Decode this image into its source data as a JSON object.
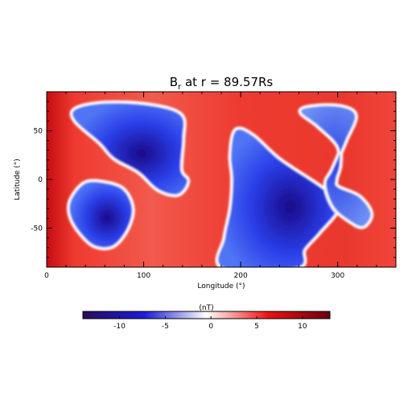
{
  "chart_data": {
    "type": "heatmap",
    "title": {
      "prefix": "B",
      "subscript": "r",
      "suffix": " at r = 89.57Rs"
    },
    "xlabel": "Longitude (°)",
    "ylabel": "Latitude (°)",
    "xlim": [
      0,
      360
    ],
    "ylim": [
      -90,
      90
    ],
    "xticks": [
      0,
      100,
      200,
      300
    ],
    "yticks": [
      -50,
      0,
      50
    ],
    "x_minor_step": 20,
    "y_minor_step": 10,
    "grid": false,
    "colormap": "blue-white-red diverging",
    "colorbar": {
      "label": "(nT)",
      "range": [
        -14,
        13
      ],
      "ticks": [
        -10,
        -5,
        0,
        5,
        10
      ],
      "colors": [
        "#2a0a5e",
        "#1c1cd9",
        "#ffffff",
        "#ee1111",
        "#6b0010"
      ]
    },
    "regions": [
      {
        "sign": "negative",
        "description": "northern blue lobe",
        "peak": -11.5,
        "outline": [
          [
            30,
            72
          ],
          [
            60,
            78
          ],
          [
            105,
            76
          ],
          [
            138,
            66
          ],
          [
            140,
            42
          ],
          [
            138,
            10
          ],
          [
            145,
            -2
          ],
          [
            135,
            -15
          ],
          [
            115,
            -10
          ],
          [
            95,
            8
          ],
          [
            70,
            22
          ],
          [
            55,
            38
          ],
          [
            30,
            60
          ]
        ]
      },
      {
        "sign": "negative",
        "description": "south-western blue oval",
        "peak": -10.5,
        "outline": [
          [
            25,
            -22
          ],
          [
            38,
            -5
          ],
          [
            55,
            -3
          ],
          [
            78,
            -10
          ],
          [
            88,
            -30
          ],
          [
            82,
            -52
          ],
          [
            68,
            -68
          ],
          [
            50,
            -68
          ],
          [
            35,
            -55
          ],
          [
            25,
            -38
          ]
        ]
      },
      {
        "sign": "negative",
        "description": "central-east blue crescent",
        "peak": -13.5,
        "outline": [
          [
            195,
            50
          ],
          [
            212,
            45
          ],
          [
            240,
            20
          ],
          [
            278,
            -5
          ],
          [
            290,
            -15
          ],
          [
            300,
            -30
          ],
          [
            280,
            -55
          ],
          [
            265,
            -72
          ],
          [
            258,
            -90
          ],
          [
            182,
            -90
          ],
          [
            184,
            -60
          ],
          [
            190,
            -30
          ],
          [
            192,
            0
          ],
          [
            190,
            25
          ]
        ]
      },
      {
        "sign": "negative",
        "description": "eastern blue wedge",
        "peak": -8,
        "outline": [
          [
            262,
            70
          ],
          [
            280,
            75
          ],
          [
            305,
            74
          ],
          [
            318,
            65
          ],
          [
            308,
            40
          ],
          [
            295,
            10
          ],
          [
            288,
            -5
          ],
          [
            296,
            -28
          ],
          [
            312,
            -42
          ],
          [
            326,
            -48
          ],
          [
            334,
            -35
          ],
          [
            322,
            -18
          ],
          [
            300,
            -8
          ],
          [
            298,
            0
          ],
          [
            302,
            15
          ],
          [
            300,
            35
          ],
          [
            280,
            55
          ]
        ]
      }
    ],
    "background": {
      "sign": "positive",
      "peak": 12
    }
  }
}
